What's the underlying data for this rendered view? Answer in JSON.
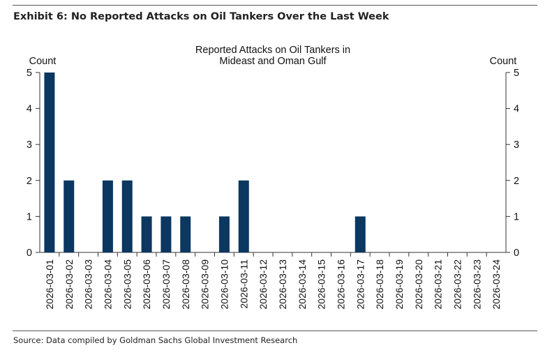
{
  "exhibit_title": "Exhibit 6: No Reported Attacks on Oil Tankers Over the Last Week",
  "source": "Source: Data compiled by Goldman Sachs Global Investment Research",
  "chart_data": {
    "type": "bar",
    "title": "Reported Attacks on Oil Tankers in\nMideast and Oman Gulf",
    "title_lines": [
      "Reported Attacks on Oil Tankers in",
      "Mideast and Oman Gulf"
    ],
    "ylabel_left": "Count",
    "ylabel_right": "Count",
    "ylim": [
      0,
      5
    ],
    "yticks": [
      0,
      1,
      2,
      3,
      4,
      5
    ],
    "grid": false,
    "bar_color": "#0b3761",
    "categories": [
      "2026-03-01",
      "2026-03-02",
      "2026-03-03",
      "2026-03-04",
      "2026-03-05",
      "2026-03-06",
      "2026-03-07",
      "2026-03-08",
      "2026-03-09",
      "2026-03-10",
      "2026-03-11",
      "2026-03-12",
      "2026-03-13",
      "2026-03-14",
      "2026-03-15",
      "2026-03-16",
      "2026-03-17",
      "2026-03-18",
      "2026-03-19",
      "2026-03-20",
      "2026-03-21",
      "2026-03-22",
      "2026-03-23",
      "2026-03-24"
    ],
    "values": [
      5,
      2,
      0,
      2,
      2,
      1,
      1,
      1,
      0,
      1,
      2,
      0,
      0,
      0,
      0,
      0,
      1,
      0,
      0,
      0,
      0,
      0,
      0,
      0
    ]
  }
}
